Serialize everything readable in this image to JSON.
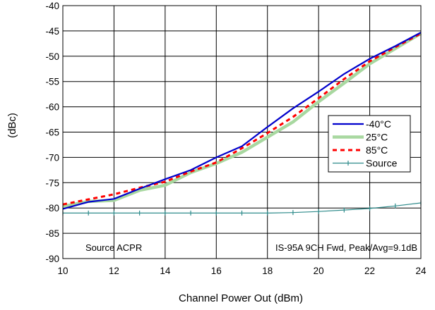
{
  "chart_data": {
    "type": "line",
    "title": "",
    "xlabel": "Channel Power Out (dBm)",
    "ylabel": "(dBc)",
    "xlim": [
      10,
      24
    ],
    "ylim": [
      -90,
      -40
    ],
    "xticks": [
      10,
      12,
      14,
      16,
      18,
      20,
      22,
      24
    ],
    "yticks": [
      -90,
      -85,
      -80,
      -75,
      -70,
      -65,
      -60,
      -55,
      -50,
      -45,
      -40
    ],
    "grid": true,
    "legend_position": "right",
    "annotations": [
      {
        "text": "Source ACPR",
        "position": "bottom-left"
      },
      {
        "text": "IS-95A 9CH Fwd, Peak/Avg=9.1dB",
        "position": "bottom-right"
      }
    ],
    "series": [
      {
        "name": "-40°C",
        "color": "#0000cc",
        "style": "solid",
        "x": [
          10,
          11,
          12,
          13,
          14,
          15,
          16,
          17,
          18,
          19,
          20,
          21,
          22,
          23,
          24
        ],
        "y": [
          -80.2,
          -78.8,
          -78.2,
          -76.2,
          -74.3,
          -72.5,
          -70.0,
          -67.8,
          -64.0,
          -60.3,
          -57.0,
          -53.5,
          -50.5,
          -48.0,
          -45.3
        ]
      },
      {
        "name": "25°C",
        "color": "#a8d8a0",
        "style": "solid-thick",
        "x": [
          10,
          11,
          12,
          13,
          14,
          15,
          16,
          17,
          18,
          19,
          20,
          21,
          22,
          23,
          24
        ],
        "y": [
          -79.7,
          -78.7,
          -78.5,
          -76.5,
          -75.5,
          -73.0,
          -71.2,
          -69.0,
          -66.0,
          -63.0,
          -59.0,
          -55.3,
          -51.5,
          -48.5,
          -45.5
        ]
      },
      {
        "name": "85°C",
        "color": "#ff0000",
        "style": "dashed",
        "x": [
          10,
          11,
          12,
          13,
          14,
          15,
          16,
          17,
          18,
          19,
          20,
          21,
          22,
          23,
          24
        ],
        "y": [
          -79.3,
          -78.3,
          -77.3,
          -76.0,
          -74.8,
          -72.8,
          -71.0,
          -68.2,
          -65.2,
          -62.0,
          -58.3,
          -54.5,
          -51.0,
          -48.2,
          -45.5
        ]
      },
      {
        "name": "Source",
        "color": "#2e8b8b",
        "style": "solid-markers",
        "x": [
          10,
          11,
          12,
          13,
          14,
          15,
          16,
          17,
          18,
          19,
          20,
          21,
          22,
          23,
          24
        ],
        "y": [
          -81.0,
          -81.0,
          -81.0,
          -81.0,
          -81.0,
          -81.0,
          -81.0,
          -81.0,
          -81.0,
          -80.9,
          -80.7,
          -80.4,
          -80.1,
          -79.6,
          -79.0
        ]
      }
    ]
  }
}
